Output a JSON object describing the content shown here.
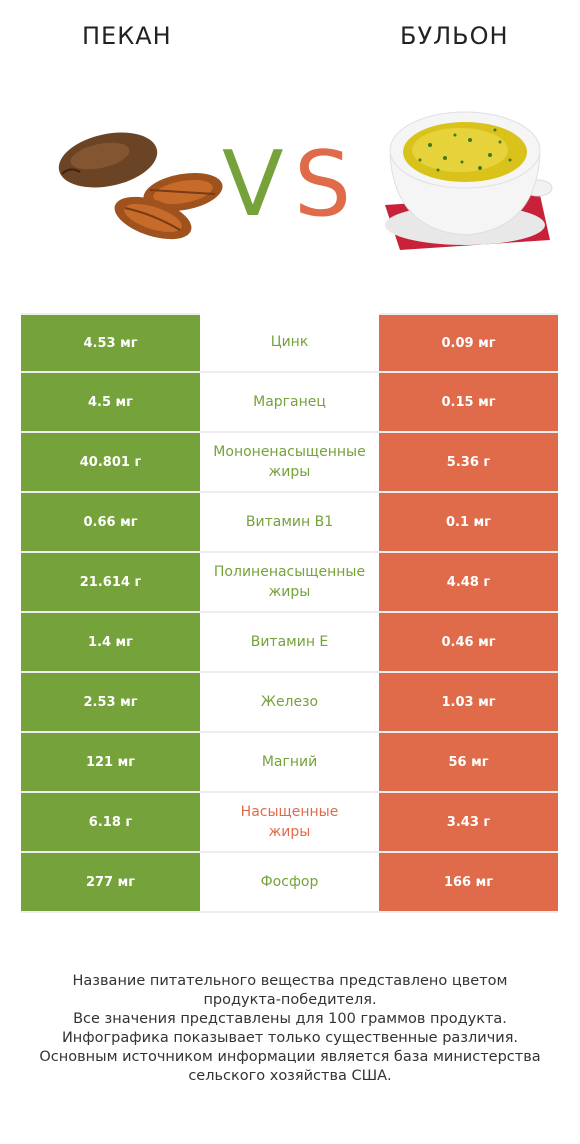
{
  "header": {
    "left_title": "ПЕКАН",
    "right_title": "БУЛЬОН",
    "vs_v": "V",
    "vs_s": "S"
  },
  "colors": {
    "winner_left": "#75a23a",
    "winner_right": "#e06b4b"
  },
  "icons": {
    "left_image": "pecan-nuts-image",
    "right_image": "broth-bowl-image"
  },
  "rows": [
    {
      "left": "4.53 мг",
      "label_lines": [
        "Цинк"
      ],
      "right": "0.09 мг",
      "winner": "left"
    },
    {
      "left": "4.5 мг",
      "label_lines": [
        "Марганец"
      ],
      "right": "0.15 мг",
      "winner": "left"
    },
    {
      "left": "40.801 г",
      "label_lines": [
        "Мононенасыщенные",
        "жиры"
      ],
      "right": "5.36 г",
      "winner": "left"
    },
    {
      "left": "0.66 мг",
      "label_lines": [
        "Витамин B1"
      ],
      "right": "0.1 мг",
      "winner": "left"
    },
    {
      "left": "21.614 г",
      "label_lines": [
        "Полиненасыщенные",
        "жиры"
      ],
      "right": "4.48 г",
      "winner": "left"
    },
    {
      "left": "1.4 мг",
      "label_lines": [
        "Витамин E"
      ],
      "right": "0.46 мг",
      "winner": "left"
    },
    {
      "left": "2.53 мг",
      "label_lines": [
        "Железо"
      ],
      "right": "1.03 мг",
      "winner": "left"
    },
    {
      "left": "121 мг",
      "label_lines": [
        "Магний"
      ],
      "right": "56 мг",
      "winner": "left"
    },
    {
      "left": "6.18 г",
      "label_lines": [
        "Насыщенные",
        "жиры"
      ],
      "right": "3.43 г",
      "winner": "right"
    },
    {
      "left": "277 мг",
      "label_lines": [
        "Фосфор"
      ],
      "right": "166 мг",
      "winner": "left"
    }
  ],
  "footer": {
    "lines": [
      "Название питательного вещества представлено цветом",
      "продукта-победителя.",
      "Все значения представлены для 100 граммов продукта.",
      "Инфографика показывает только существенные различия.",
      "Основным источником информации является база министерства",
      "сельского хозяйства США."
    ]
  }
}
